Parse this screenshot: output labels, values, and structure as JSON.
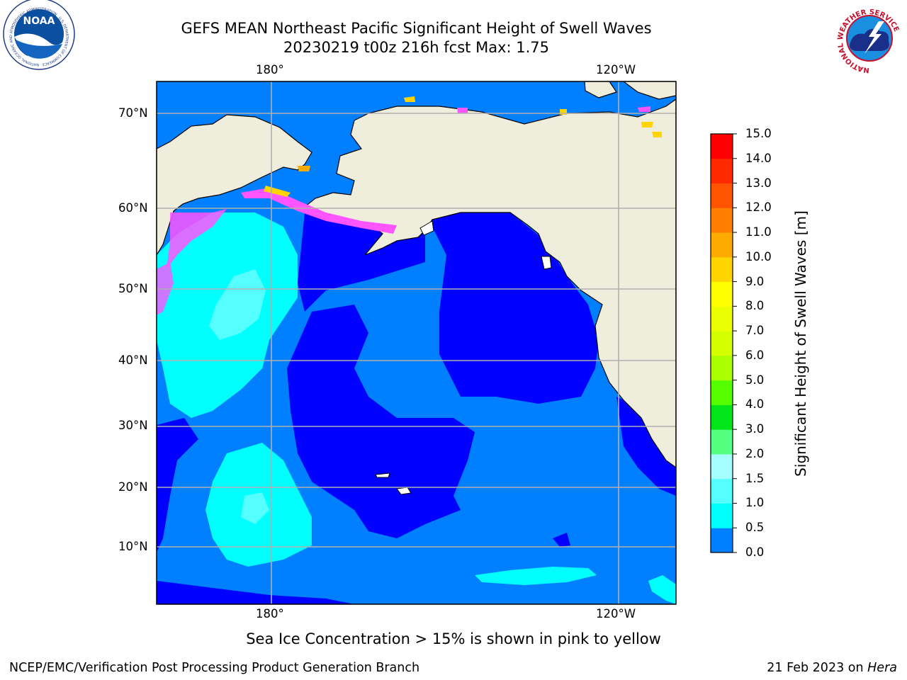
{
  "header": {
    "title": "GEFS MEAN Northeast Pacific Significant Height of Swell Waves",
    "subtitle": "20230219 t00z 216h fcst   Max: 1.75"
  },
  "logos": {
    "noaa": {
      "text": "NOAA",
      "ring_text": "NATIONAL OCEANIC AND ATMOSPHERIC ADMINISTRATION · U.S. DEPARTMENT OF COMMERCE"
    },
    "nws": {
      "ring_text": "NATIONAL WEATHER SERVICE"
    }
  },
  "map": {
    "top_lon_labels": [
      "180°",
      "120°W"
    ],
    "bottom_lon_labels": [
      "180°",
      "120°W"
    ],
    "lat_labels": [
      "70°N",
      "60°N",
      "50°N",
      "40°N",
      "30°N",
      "20°N",
      "10°N"
    ]
  },
  "colorbar": {
    "label": "Significant Height of Swell Waves [m]",
    "ticks": [
      "15.0",
      "14.0",
      "13.0",
      "12.0",
      "11.0",
      "10.0",
      "9.0",
      "8.0",
      "7.0",
      "6.0",
      "5.0",
      "4.0",
      "3.0",
      "2.0",
      "1.5",
      "1.0",
      "0.5",
      "0.0"
    ],
    "colors": [
      "#ff0000",
      "#ff2a00",
      "#ff5500",
      "#ff8000",
      "#ffaa00",
      "#ffd400",
      "#ffff00",
      "#eaff00",
      "#d4ff00",
      "#aaff00",
      "#55ff00",
      "#00e619",
      "#55ff80",
      "#a6ffff",
      "#55ffff",
      "#00ffff",
      "#0080ff",
      "#0000ff"
    ]
  },
  "colors": {
    "land": "#efeddc",
    "ocean_low": "#0000ff",
    "ocean_mid": "#0080ff",
    "ocean_high": "#00ffff",
    "ocean_peak": "#55ffff",
    "ice_pink": "#ff55ff",
    "ice_yellow": "#ffd400"
  },
  "footer": {
    "note": "Sea Ice Concentration > 15% is shown in pink to yellow",
    "credit_left": "NCEP/EMC/Verification Post Processing Product Generation Branch",
    "credit_date": "21 Feb 2023 on ",
    "credit_machine": "Hera"
  }
}
